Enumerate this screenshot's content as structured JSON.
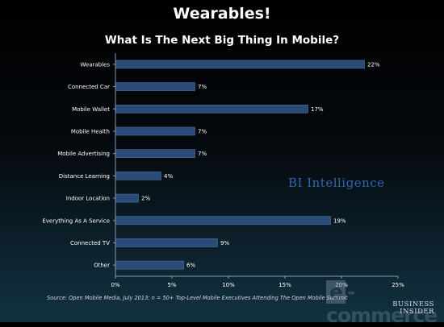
{
  "header": {
    "title": "Wearables!",
    "subtitle": "What Is The Next Big Thing In Mobile?"
  },
  "source": "Source: Open Mobile Media, July 2013; n = 50+ Top-Level Mobile Executives Attending The Open Mobile Summit",
  "watermarks": {
    "bi_intelligence": "BI Intelligence",
    "ecommerce": "e-commerce",
    "business_insider": "BUSINESS INSIDER"
  },
  "colors": {
    "bar_fill": "#2a4b78",
    "bar_stroke": "#4f73a5",
    "axis": "#8a9aa8",
    "text": "#ffffff",
    "bi_blue": "#2f67b0"
  },
  "chart_data": {
    "type": "bar",
    "orientation": "horizontal",
    "categories": [
      "Wearables",
      "Connected Car",
      "Mobile Wallet",
      "Mobile Health",
      "Mobile Advertising",
      "Distance Learning",
      "Indoor Location",
      "Everything As A Service",
      "Connected TV",
      "Other"
    ],
    "values": [
      22,
      7,
      17,
      7,
      7,
      4,
      2,
      19,
      9,
      6
    ],
    "value_labels": [
      "22%",
      "7%",
      "17%",
      "7%",
      "7%",
      "4%",
      "2%",
      "19%",
      "9%",
      "6%"
    ],
    "x_ticks": [
      "0%",
      "5%",
      "10%",
      "15%",
      "20%",
      "25%"
    ],
    "xlim": [
      0,
      25
    ],
    "grid": false
  }
}
